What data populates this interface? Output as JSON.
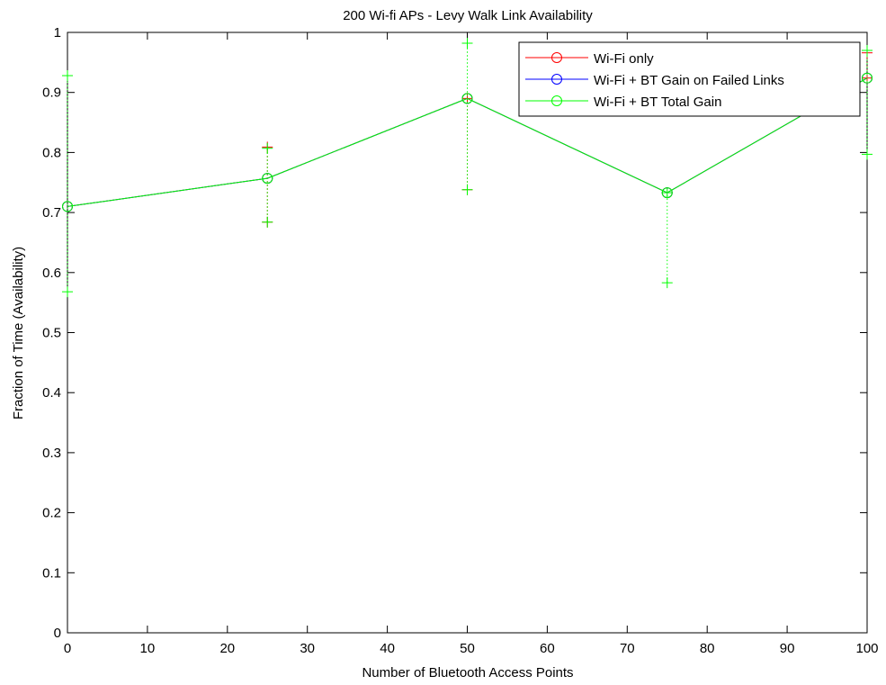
{
  "chart_data": {
    "type": "line",
    "title": "200 Wi-fi APs - Levy Walk Link Availability",
    "xlabel": "Number of Bluetooth Access Points",
    "ylabel": "Fraction of Time (Availability)",
    "xlim": [
      0,
      100
    ],
    "ylim": [
      0,
      1
    ],
    "xticks": [
      0,
      10,
      20,
      30,
      40,
      50,
      60,
      70,
      80,
      90,
      100
    ],
    "yticks": [
      0,
      0.1,
      0.2,
      0.3,
      0.4,
      0.5,
      0.6,
      0.7,
      0.8,
      0.9,
      1
    ],
    "grid": false,
    "legend_position": "top-right",
    "x": [
      0,
      25,
      50,
      75,
      100
    ],
    "series": [
      {
        "name": "Wi-Fi only",
        "color": "#ff0000",
        "values": [
          0.71,
          0.757,
          0.89,
          0.733,
          0.924
        ],
        "err_low": [
          0.71,
          0.684,
          0.738,
          0.733,
          0.924
        ],
        "err_high": [
          0.71,
          0.809,
          0.89,
          0.733,
          0.966
        ]
      },
      {
        "name": "Wi-Fi + BT Gain on Failed Links",
        "color": "#0000ff",
        "values": [
          0.71,
          0.757,
          0.89,
          0.733,
          0.924
        ],
        "err_low": [
          0.71,
          0.757,
          0.89,
          0.733,
          0.924
        ],
        "err_high": [
          0.71,
          0.757,
          0.89,
          0.733,
          0.924
        ]
      },
      {
        "name": "Wi-Fi + BT Total Gain",
        "color": "#00ff00",
        "values": [
          0.71,
          0.757,
          0.89,
          0.733,
          0.924
        ],
        "err_low": [
          0.568,
          0.684,
          0.738,
          0.583,
          0.797
        ],
        "err_high": [
          0.928,
          0.807,
          0.982,
          0.733,
          0.97
        ]
      }
    ]
  }
}
